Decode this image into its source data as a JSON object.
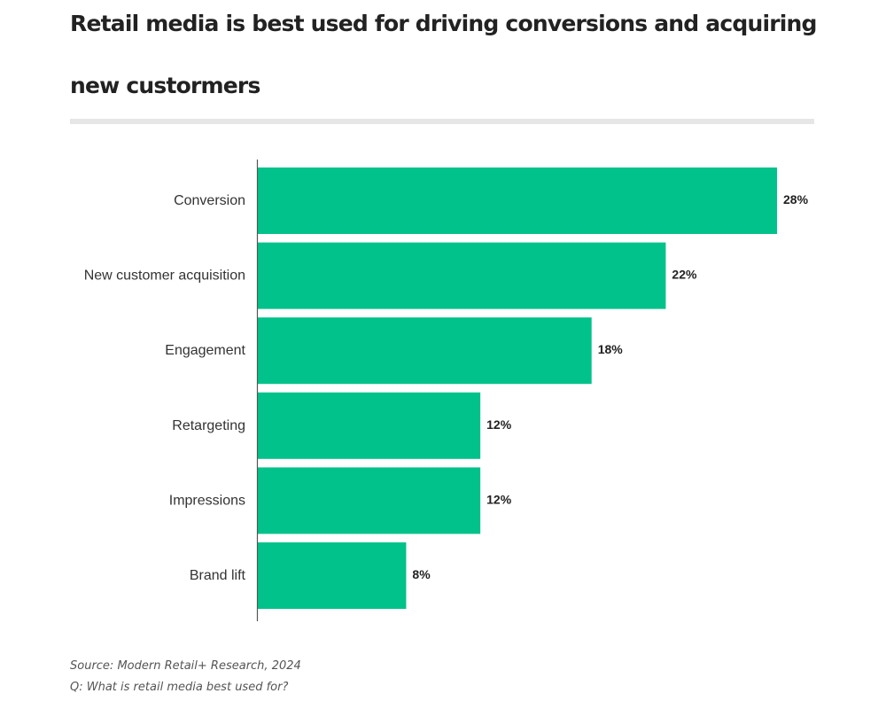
{
  "chart_data": {
    "type": "bar",
    "orientation": "horizontal",
    "title_lines": [
      "Retail media is best used for driving conversions and acquiring",
      "new custormers"
    ],
    "categories": [
      "Conversion",
      "New customer acquisition",
      "Engagement",
      "Retargeting",
      "Impressions",
      "Brand lift"
    ],
    "values": [
      28,
      22,
      18,
      12,
      12,
      8
    ],
    "value_labels": [
      "28%",
      "22%",
      "18%",
      "12%",
      "12%",
      "8%"
    ],
    "xlim": [
      0,
      28
    ],
    "grid": false,
    "bar_color": "#00c28a",
    "axis_color": "#555555",
    "source": "Source: Modern Retail+ Research, 2024",
    "question": "Q: What is retail media best used for?"
  }
}
